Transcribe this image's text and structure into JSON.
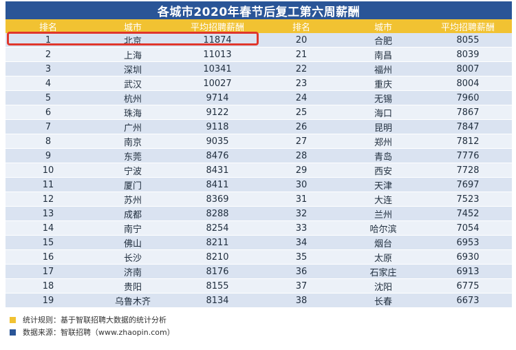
{
  "title": "各城市2020年春节后复工第六周薪酬",
  "headers": [
    "排名",
    "城市",
    "平均招聘薪酬",
    "排名",
    "城市",
    "平均招聘薪酬"
  ],
  "rows": [
    [
      "1",
      "北京",
      "11874",
      "20",
      "合肥",
      "8055"
    ],
    [
      "2",
      "上海",
      "11013",
      "21",
      "南昌",
      "8039"
    ],
    [
      "3",
      "深圳",
      "10341",
      "22",
      "福州",
      "8007"
    ],
    [
      "4",
      "武汉",
      "10027",
      "23",
      "重庆",
      "8004"
    ],
    [
      "5",
      "杭州",
      "9714",
      "24",
      "无锡",
      "7960"
    ],
    [
      "6",
      "珠海",
      "9122",
      "25",
      "海口",
      "7867"
    ],
    [
      "7",
      "广州",
      "9118",
      "26",
      "昆明",
      "7847"
    ],
    [
      "8",
      "南京",
      "9035",
      "27",
      "郑州",
      "7812"
    ],
    [
      "9",
      "东莞",
      "8476",
      "28",
      "青岛",
      "7776"
    ],
    [
      "10",
      "宁波",
      "8431",
      "29",
      "西安",
      "7728"
    ],
    [
      "11",
      "厦门",
      "8411",
      "30",
      "天津",
      "7697"
    ],
    [
      "12",
      "苏州",
      "8369",
      "31",
      "大连",
      "7523"
    ],
    [
      "13",
      "成都",
      "8288",
      "32",
      "兰州",
      "7452"
    ],
    [
      "14",
      "南宁",
      "8254",
      "33",
      "哈尔滨",
      "7054"
    ],
    [
      "15",
      "佛山",
      "8211",
      "34",
      "烟台",
      "6953"
    ],
    [
      "16",
      "长沙",
      "8210",
      "35",
      "太原",
      "6930"
    ],
    [
      "17",
      "济南",
      "8176",
      "36",
      "石家庄",
      "6913"
    ],
    [
      "18",
      "贵阳",
      "8155",
      "37",
      "沈阳",
      "6775"
    ],
    [
      "19",
      "乌鲁木齐",
      "8134",
      "38",
      "长春",
      "6673"
    ]
  ],
  "legend": [
    {
      "color": "#f1c232",
      "text": "统计规则：基于智联招聘大数据的统计分析"
    },
    {
      "color": "#2a5597",
      "text": "数据来源：智联招聘（www.zhaopin.com）"
    }
  ],
  "colors": {
    "header": "#f1c232",
    "title": "#2a5597",
    "highlight": "#e0362b"
  }
}
